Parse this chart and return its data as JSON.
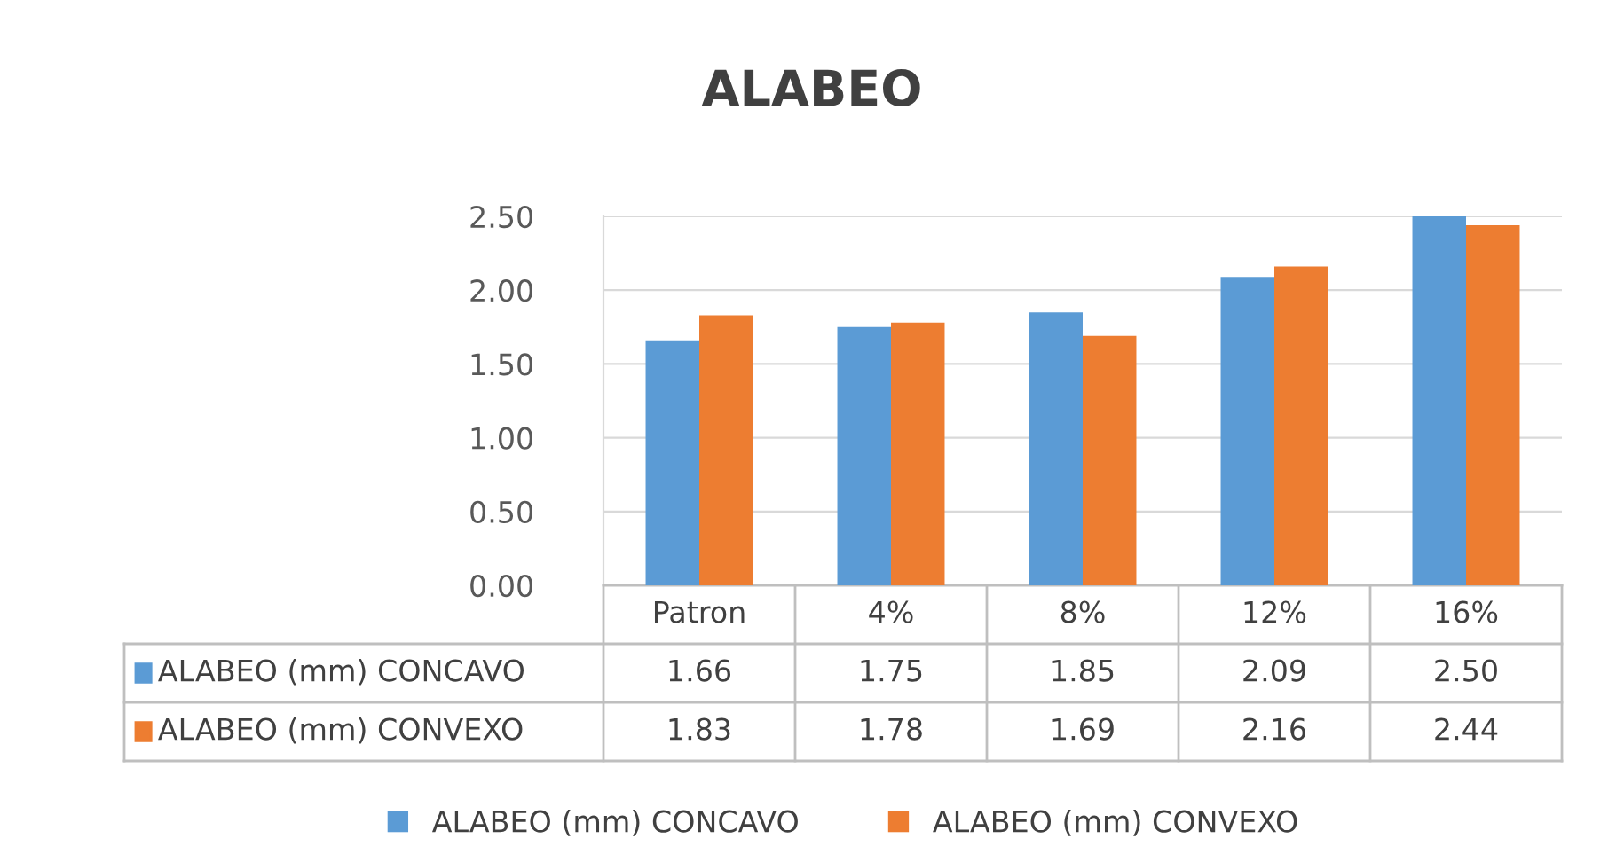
{
  "chart_data": {
    "type": "bar",
    "title": "ALABEO",
    "categories": [
      "Patron",
      "4%",
      "8%",
      "12%",
      "16%"
    ],
    "series": [
      {
        "name": "ALABEO (mm) CONCAVO",
        "color": "#5b9bd5",
        "values": [
          1.66,
          1.75,
          1.85,
          2.09,
          2.5
        ],
        "value_labels": [
          "1.66",
          "1.75",
          "1.85",
          "2.09",
          "2.50"
        ]
      },
      {
        "name": "ALABEO (mm) CONVEXO",
        "color": "#ed7d31",
        "values": [
          1.83,
          1.78,
          1.69,
          2.16,
          2.44
        ],
        "value_labels": [
          "1.83",
          "1.78",
          "1.69",
          "2.16",
          "2.44"
        ]
      }
    ],
    "ylim": [
      0,
      2.5
    ],
    "yticks": [
      {
        "value": 0,
        "label": "0.00"
      },
      {
        "value": 0.5,
        "label": "0.50"
      },
      {
        "value": 1,
        "label": "1.00"
      },
      {
        "value": 1.5,
        "label": "1.50"
      },
      {
        "value": 2,
        "label": "2.00"
      },
      {
        "value": 2.5,
        "label": "2.50"
      }
    ],
    "grid": "y",
    "legend": "bottom"
  }
}
